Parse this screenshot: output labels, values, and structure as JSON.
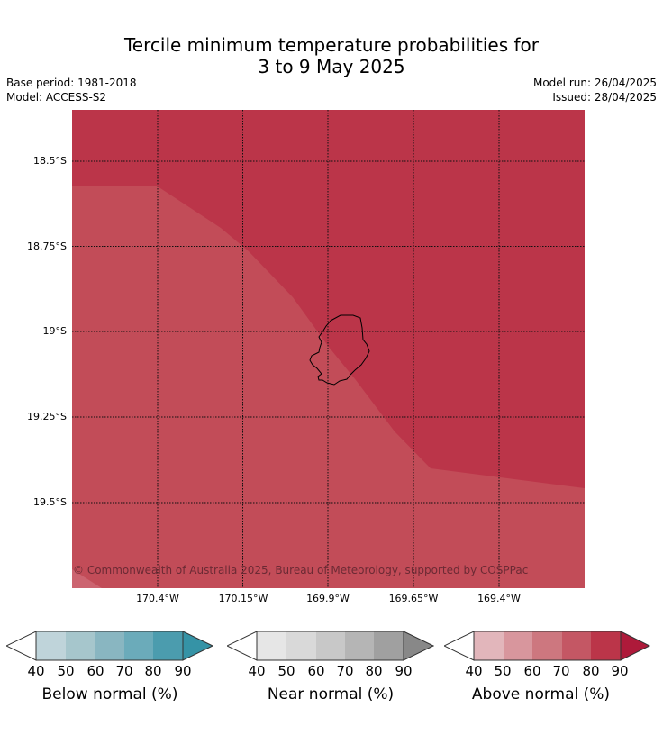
{
  "title": {
    "line1": "Tercile minimum temperature probabilities for",
    "line2": "3 to 9 May 2025"
  },
  "meta": {
    "base_period": "Base period: 1981-2018",
    "model": "Model: ACCESS-S2",
    "model_run": "Model run: 26/04/2025",
    "issued": "Issued: 28/04/2025"
  },
  "map": {
    "latitude_labels": [
      "18.5°S",
      "18.75°S",
      "19°S",
      "19.25°S",
      "19.5°S"
    ],
    "longitude_labels": [
      "170.4°W",
      "170.15°W",
      "169.9°W",
      "169.65°W",
      "169.4°W"
    ],
    "copyright": "© Commonwealth of Australia 2025, Bureau of Meteorology, supported by COSPPac",
    "region_colors": {
      "above_80_90": "#bb3549",
      "above_70_80": "#c24c58"
    }
  },
  "colorbars": [
    {
      "label": "Below normal (%)",
      "ticks": [
        "40",
        "50",
        "60",
        "70",
        "80",
        "90"
      ],
      "colors": [
        "#bfd4da",
        "#a6c6cc",
        "#89b6c1",
        "#6babba",
        "#4b9cae"
      ],
      "extend_color": "#3593a6"
    },
    {
      "label": "Near normal (%)",
      "ticks": [
        "40",
        "50",
        "60",
        "70",
        "80",
        "90"
      ],
      "colors": [
        "#e6e6e6",
        "#d9d9d9",
        "#c8c8c8",
        "#b5b5b5",
        "#a0a0a0"
      ],
      "extend_color": "#888888"
    },
    {
      "label": "Above normal (%)",
      "ticks": [
        "40",
        "50",
        "60",
        "70",
        "80",
        "90"
      ],
      "colors": [
        "#e2b6bb",
        "#d8969d",
        "#cd777f",
        "#c45764",
        "#bb3549"
      ],
      "extend_color": "#ae1a3a"
    }
  ]
}
